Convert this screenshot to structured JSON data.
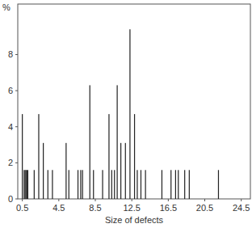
{
  "chart_data": {
    "type": "bar",
    "x_label": "Size of defects",
    "y_label": "%",
    "x": [
      0.5,
      0.7,
      0.8,
      0.9,
      1.0,
      1.1,
      1.8,
      2.3,
      2.8,
      3.3,
      3.8,
      5.3,
      5.6,
      6.6,
      6.9,
      7.1,
      7.9,
      8.3,
      9.3,
      10.0,
      10.3,
      10.6,
      10.9,
      11.3,
      11.8,
      12.3,
      12.8,
      13.1,
      13.5,
      14.0,
      15.8,
      16.8,
      17.3,
      17.6,
      18.3,
      18.8,
      22.0
    ],
    "values": [
      4.7,
      1.6,
      1.6,
      1.6,
      1.6,
      1.6,
      1.6,
      4.7,
      3.1,
      1.6,
      1.6,
      3.1,
      1.6,
      1.6,
      1.6,
      1.6,
      6.3,
      1.6,
      1.6,
      4.7,
      1.6,
      1.6,
      6.3,
      3.1,
      3.1,
      9.4,
      4.7,
      1.6,
      1.6,
      1.6,
      1.6,
      1.6,
      1.6,
      1.6,
      1.6,
      1.6,
      1.6
    ],
    "color": "#222222",
    "xlim": [
      0,
      25.5
    ],
    "xticks": [
      0.5,
      4.5,
      8.5,
      12.5,
      16.5,
      20.5,
      24.5
    ],
    "ylim": [
      0,
      10.8
    ],
    "yticks": [
      0,
      2,
      4,
      6,
      8
    ],
    "grid": false
  }
}
